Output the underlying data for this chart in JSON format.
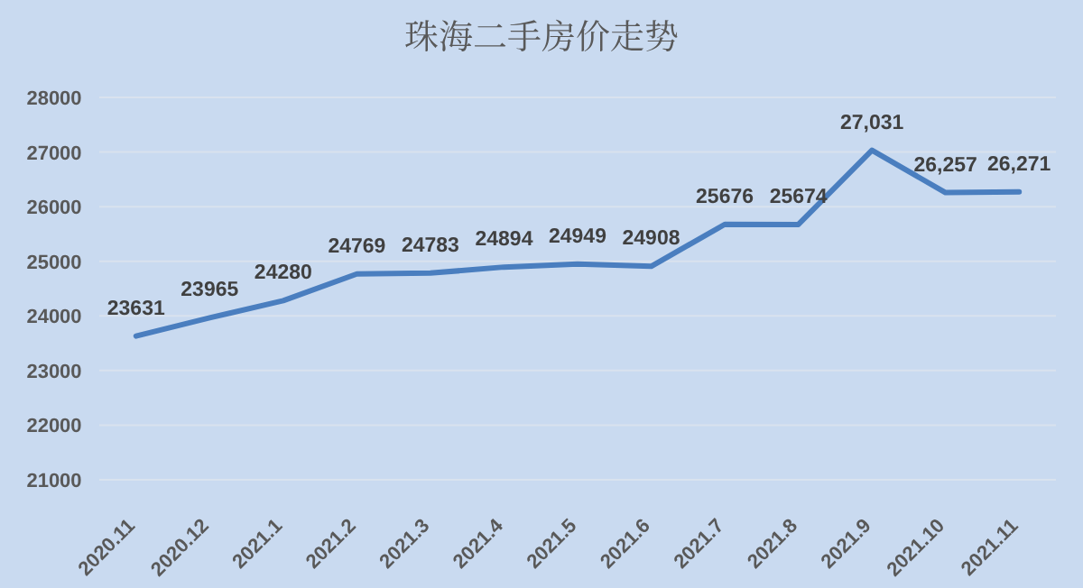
{
  "chart_data": {
    "type": "line",
    "title": "珠海二手房价走势",
    "categories": [
      "2020.11",
      "2020.12",
      "2021.1",
      "2021.2",
      "2021.3",
      "2021.4",
      "2021.5",
      "2021.6",
      "2021.7",
      "2021.8",
      "2021.9",
      "2021.10",
      "2021.11"
    ],
    "series": [
      {
        "color": "#4a7ebf",
        "values": [
          23631,
          23965,
          24280,
          24769,
          24783,
          24894,
          24949,
          24908,
          25676,
          25674,
          27031,
          26257,
          26271
        ],
        "value_labels": [
          "23631",
          "23965",
          "24280",
          "24769",
          "24783",
          "24894",
          "24949",
          "24908",
          "25676",
          "25674",
          "27,031",
          "26,257",
          "26,271"
        ]
      }
    ],
    "ylim": [
      21000,
      28000
    ],
    "yticks": [
      21000,
      22000,
      23000,
      24000,
      25000,
      26000,
      27000,
      28000
    ],
    "grid": "y",
    "marker": "none",
    "line_style": "solid"
  }
}
